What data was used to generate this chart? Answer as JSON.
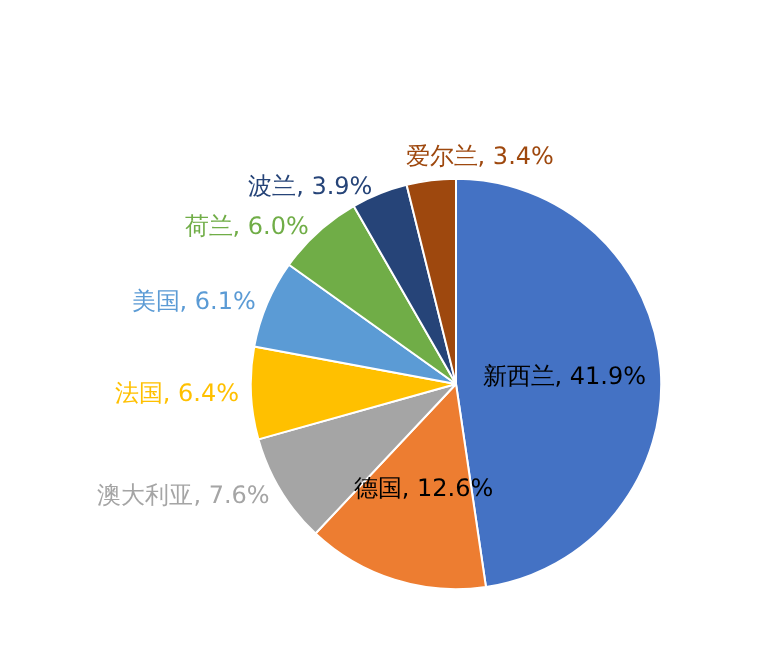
{
  "chart_data": {
    "type": "pie",
    "categories": [
      "新西兰",
      "德国",
      "澳大利亚",
      "法国",
      "美国",
      "荷兰",
      "波兰",
      "爱尔兰"
    ],
    "values": [
      41.9,
      12.6,
      7.6,
      6.4,
      6.1,
      6.0,
      3.9,
      3.4
    ],
    "value_labels": [
      "41.9%",
      "12.6%",
      "7.6%",
      "6.4%",
      "6.1%",
      "6.0%",
      "3.9%",
      "3.4%"
    ],
    "colors": [
      "#4472c4",
      "#ed7d31",
      "#a5a5a5",
      "#ffc000",
      "#5b9bd5",
      "#70ad47",
      "#264478",
      "#9e480e"
    ],
    "legend": false
  }
}
